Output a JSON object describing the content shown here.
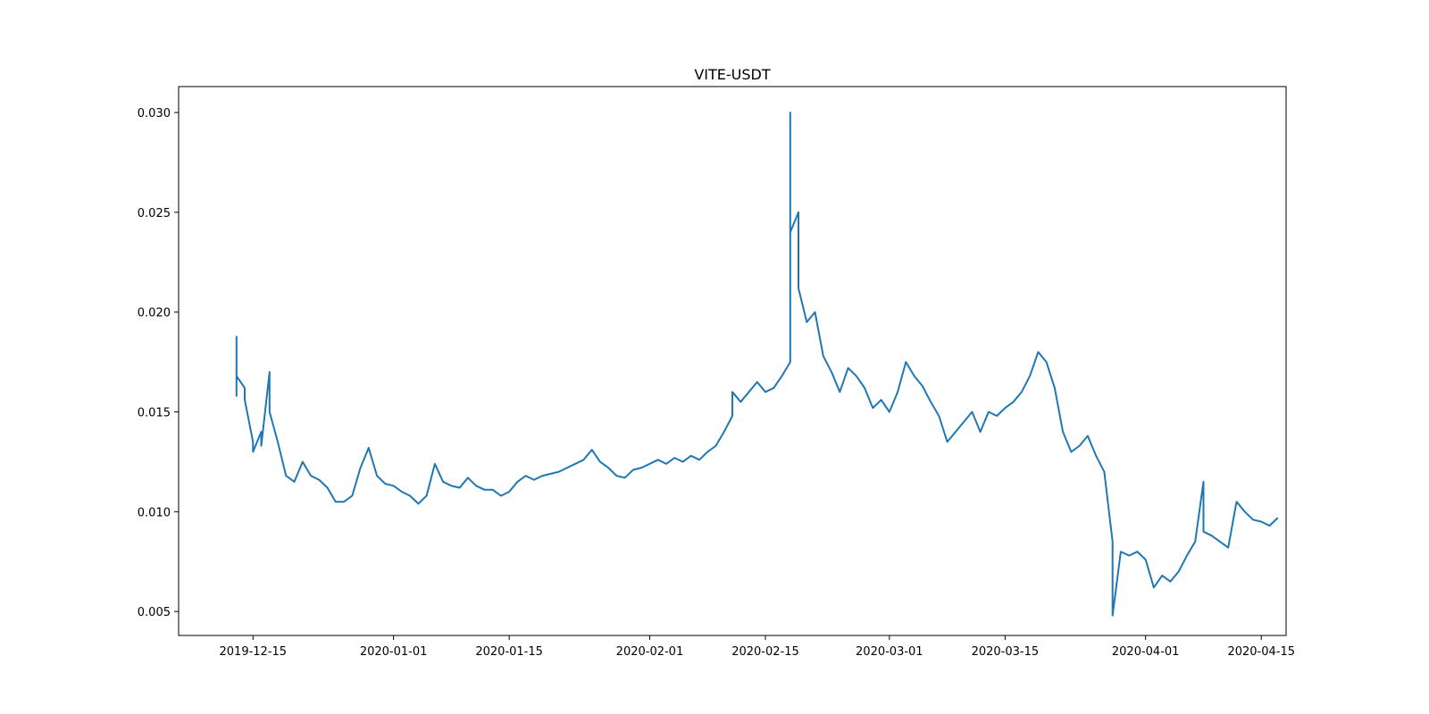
{
  "chart_data": {
    "type": "line",
    "title": "VITE-USDT",
    "xlabel": "",
    "ylabel": "",
    "x_type": "date",
    "xlim": [
      "2019-12-06",
      "2020-04-18"
    ],
    "ylim": [
      0.0038,
      0.0313
    ],
    "grid": false,
    "x_ticks": [
      "2019-12-15",
      "2020-01-01",
      "2020-01-15",
      "2020-02-01",
      "2020-02-15",
      "2020-03-01",
      "2020-03-15",
      "2020-04-01",
      "2020-04-15"
    ],
    "x_tick_labels": [
      "2019-12-15",
      "2020-01-01",
      "2020-01-15",
      "2020-02-01",
      "2020-02-15",
      "2020-03-01",
      "2020-03-15",
      "2020-04-01",
      "2020-04-15"
    ],
    "y_ticks": [
      0.005,
      0.01,
      0.015,
      0.02,
      0.025,
      0.03
    ],
    "y_tick_labels": [
      "0.005",
      "0.010",
      "0.015",
      "0.020",
      "0.025",
      "0.030"
    ],
    "series": [
      {
        "color": "#1f77b4",
        "points": [
          [
            "2019-12-13",
            0.0188
          ],
          [
            "2019-12-13",
            0.0158
          ],
          [
            "2019-12-13",
            0.0168
          ],
          [
            "2019-12-14",
            0.0162
          ],
          [
            "2019-12-14",
            0.0156
          ],
          [
            "2019-12-15",
            0.0135
          ],
          [
            "2019-12-15",
            0.013
          ],
          [
            "2019-12-16",
            0.014
          ],
          [
            "2019-12-16",
            0.0133
          ],
          [
            "2019-12-17",
            0.017
          ],
          [
            "2019-12-17",
            0.015
          ],
          [
            "2019-12-18",
            0.0135
          ],
          [
            "2019-12-19",
            0.0118
          ],
          [
            "2019-12-20",
            0.0115
          ],
          [
            "2019-12-21",
            0.0125
          ],
          [
            "2019-12-22",
            0.0118
          ],
          [
            "2019-12-23",
            0.0116
          ],
          [
            "2019-12-24",
            0.0112
          ],
          [
            "2019-12-25",
            0.0105
          ],
          [
            "2019-12-26",
            0.0105
          ],
          [
            "2019-12-27",
            0.0108
          ],
          [
            "2019-12-28",
            0.0122
          ],
          [
            "2019-12-29",
            0.0132
          ],
          [
            "2019-12-30",
            0.0118
          ],
          [
            "2019-12-31",
            0.0114
          ],
          [
            "2020-01-01",
            0.0113
          ],
          [
            "2020-01-02",
            0.011
          ],
          [
            "2020-01-03",
            0.0108
          ],
          [
            "2020-01-04",
            0.0104
          ],
          [
            "2020-01-05",
            0.0108
          ],
          [
            "2020-01-06",
            0.0124
          ],
          [
            "2020-01-07",
            0.0115
          ],
          [
            "2020-01-08",
            0.0113
          ],
          [
            "2020-01-09",
            0.0112
          ],
          [
            "2020-01-10",
            0.0117
          ],
          [
            "2020-01-11",
            0.0113
          ],
          [
            "2020-01-12",
            0.0111
          ],
          [
            "2020-01-13",
            0.0111
          ],
          [
            "2020-01-14",
            0.0108
          ],
          [
            "2020-01-15",
            0.011
          ],
          [
            "2020-01-16",
            0.0115
          ],
          [
            "2020-01-17",
            0.0118
          ],
          [
            "2020-01-18",
            0.0116
          ],
          [
            "2020-01-19",
            0.0118
          ],
          [
            "2020-01-20",
            0.0119
          ],
          [
            "2020-01-21",
            0.012
          ],
          [
            "2020-01-22",
            0.0122
          ],
          [
            "2020-01-23",
            0.0124
          ],
          [
            "2020-01-24",
            0.0126
          ],
          [
            "2020-01-25",
            0.0131
          ],
          [
            "2020-01-26",
            0.0125
          ],
          [
            "2020-01-27",
            0.0122
          ],
          [
            "2020-01-28",
            0.0118
          ],
          [
            "2020-01-29",
            0.0117
          ],
          [
            "2020-01-30",
            0.0121
          ],
          [
            "2020-01-31",
            0.0122
          ],
          [
            "2020-02-01",
            0.0124
          ],
          [
            "2020-02-02",
            0.0126
          ],
          [
            "2020-02-03",
            0.0124
          ],
          [
            "2020-02-04",
            0.0127
          ],
          [
            "2020-02-05",
            0.0125
          ],
          [
            "2020-02-06",
            0.0128
          ],
          [
            "2020-02-07",
            0.0126
          ],
          [
            "2020-02-08",
            0.013
          ],
          [
            "2020-02-09",
            0.0133
          ],
          [
            "2020-02-10",
            0.014
          ],
          [
            "2020-02-11",
            0.0148
          ],
          [
            "2020-02-11",
            0.016
          ],
          [
            "2020-02-12",
            0.0155
          ],
          [
            "2020-02-13",
            0.016
          ],
          [
            "2020-02-14",
            0.0165
          ],
          [
            "2020-02-15",
            0.016
          ],
          [
            "2020-02-16",
            0.0162
          ],
          [
            "2020-02-17",
            0.0168
          ],
          [
            "2020-02-18",
            0.0175
          ],
          [
            "2020-02-18",
            0.03
          ],
          [
            "2020-02-18",
            0.024
          ],
          [
            "2020-02-19",
            0.025
          ],
          [
            "2020-02-19",
            0.0212
          ],
          [
            "2020-02-20",
            0.0195
          ],
          [
            "2020-02-21",
            0.02
          ],
          [
            "2020-02-22",
            0.0178
          ],
          [
            "2020-02-23",
            0.017
          ],
          [
            "2020-02-24",
            0.016
          ],
          [
            "2020-02-25",
            0.0172
          ],
          [
            "2020-02-26",
            0.0168
          ],
          [
            "2020-02-27",
            0.0162
          ],
          [
            "2020-02-28",
            0.0152
          ],
          [
            "2020-02-29",
            0.0156
          ],
          [
            "2020-03-01",
            0.015
          ],
          [
            "2020-03-02",
            0.016
          ],
          [
            "2020-03-03",
            0.0175
          ],
          [
            "2020-03-04",
            0.0168
          ],
          [
            "2020-03-05",
            0.0163
          ],
          [
            "2020-03-06",
            0.0155
          ],
          [
            "2020-03-07",
            0.0148
          ],
          [
            "2020-03-08",
            0.0135
          ],
          [
            "2020-03-09",
            0.014
          ],
          [
            "2020-03-10",
            0.0145
          ],
          [
            "2020-03-11",
            0.015
          ],
          [
            "2020-03-12",
            0.014
          ],
          [
            "2020-03-13",
            0.015
          ],
          [
            "2020-03-14",
            0.0148
          ],
          [
            "2020-03-15",
            0.0152
          ],
          [
            "2020-03-16",
            0.0155
          ],
          [
            "2020-03-17",
            0.016
          ],
          [
            "2020-03-18",
            0.0168
          ],
          [
            "2020-03-19",
            0.018
          ],
          [
            "2020-03-20",
            0.0175
          ],
          [
            "2020-03-21",
            0.0162
          ],
          [
            "2020-03-22",
            0.014
          ],
          [
            "2020-03-23",
            0.013
          ],
          [
            "2020-03-24",
            0.0133
          ],
          [
            "2020-03-25",
            0.0138
          ],
          [
            "2020-03-26",
            0.0128
          ],
          [
            "2020-03-27",
            0.012
          ],
          [
            "2020-03-28",
            0.0085
          ],
          [
            "2020-03-28",
            0.0048
          ],
          [
            "2020-03-29",
            0.008
          ],
          [
            "2020-03-30",
            0.0078
          ],
          [
            "2020-03-31",
            0.008
          ],
          [
            "2020-04-01",
            0.0076
          ],
          [
            "2020-04-02",
            0.0062
          ],
          [
            "2020-04-03",
            0.0068
          ],
          [
            "2020-04-04",
            0.0065
          ],
          [
            "2020-04-05",
            0.007
          ],
          [
            "2020-04-06",
            0.0078
          ],
          [
            "2020-04-07",
            0.0085
          ],
          [
            "2020-04-08",
            0.0115
          ],
          [
            "2020-04-08",
            0.009
          ],
          [
            "2020-04-09",
            0.0088
          ],
          [
            "2020-04-10",
            0.0085
          ],
          [
            "2020-04-11",
            0.0082
          ],
          [
            "2020-04-12",
            0.0105
          ],
          [
            "2020-04-13",
            0.01
          ],
          [
            "2020-04-14",
            0.0096
          ],
          [
            "2020-04-15",
            0.0095
          ],
          [
            "2020-04-16",
            0.0093
          ],
          [
            "2020-04-17",
            0.0097
          ]
        ]
      }
    ]
  }
}
